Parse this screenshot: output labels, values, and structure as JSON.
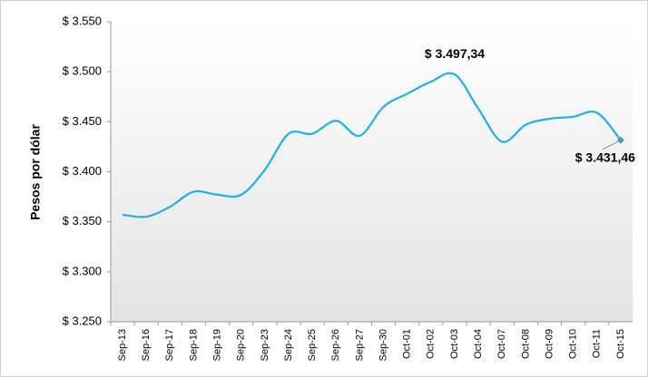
{
  "chart_data": {
    "type": "line",
    "y_label": "Pesos por dólar",
    "categories": [
      "Sep-13",
      "Sep-16",
      "Sep-17",
      "Sep-18",
      "Sep-19",
      "Sep-20",
      "Sep-23",
      "Sep-24",
      "Sep-25",
      "Sep-26",
      "Sep-27",
      "Sep-30",
      "Oct-01",
      "Oct-02",
      "Oct-03",
      "Oct-04",
      "Oct-07",
      "Oct-08",
      "Oct-09",
      "Oct-10",
      "Oct-11",
      "Oct-15"
    ],
    "series": [
      {
        "name": "Pesos por dólar",
        "color": "#1cb1ea",
        "values": [
          3357,
          3355,
          3365,
          3380,
          3377,
          3377,
          3402,
          3438,
          3438,
          3451,
          3436,
          3465,
          3478,
          3490,
          3497.34,
          3463,
          3430,
          3447,
          3453,
          3455,
          3459,
          3431.46
        ],
        "value_labels": [
          null,
          null,
          null,
          null,
          null,
          null,
          null,
          null,
          null,
          null,
          null,
          null,
          null,
          null,
          "$ 3.497,34",
          null,
          null,
          null,
          null,
          null,
          null,
          "$ 3.431,46"
        ]
      }
    ],
    "ylim": [
      3250,
      3550
    ],
    "yticks": [
      {
        "value": 3250,
        "label": "$ 3.250"
      },
      {
        "value": 3300,
        "label": "$ 3.300"
      },
      {
        "value": 3350,
        "label": "$ 3.350"
      },
      {
        "value": 3400,
        "label": "$ 3.400"
      },
      {
        "value": 3450,
        "label": "$ 3.450"
      },
      {
        "value": 3500,
        "label": "$ 3.500"
      },
      {
        "value": 3550,
        "label": "$ 3.550"
      }
    ],
    "grid": false
  }
}
